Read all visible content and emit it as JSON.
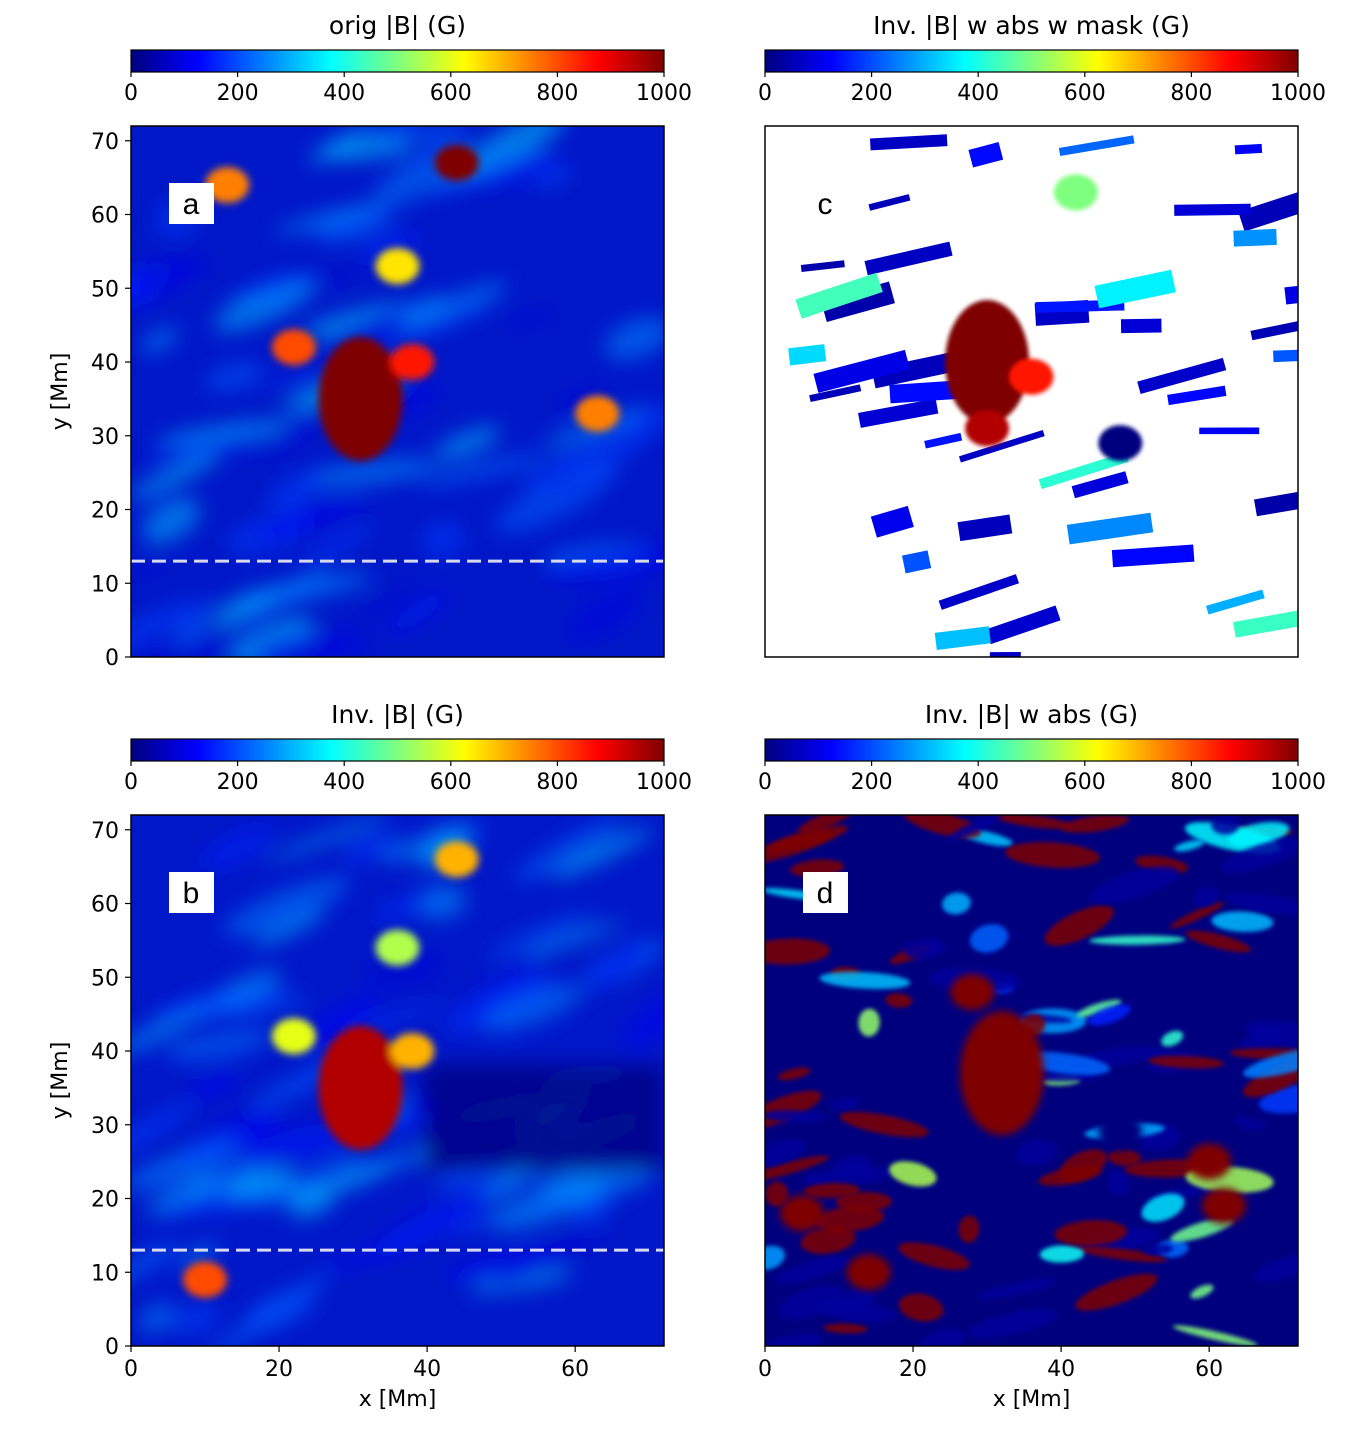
{
  "figure": {
    "colorscale": [
      "#00007f",
      "#0000ff",
      "#007fff",
      "#00ffff",
      "#7fff7f",
      "#ffff00",
      "#ff7f00",
      "#ff0000",
      "#7f0000"
    ],
    "x_axis_label": "x [Mm]",
    "y_axis_label": "y [Mm]"
  },
  "chart_data": [
    {
      "type": "heatmap",
      "panel_label": "a",
      "title": "orig |B| (G)",
      "colorbar": {
        "min": 0,
        "max": 1000,
        "ticks": [
          0,
          200,
          400,
          600,
          800,
          1000
        ],
        "cmap": "jet"
      },
      "xlim": [
        0,
        72
      ],
      "ylim": [
        0,
        72
      ],
      "yticks": [
        0,
        10,
        20,
        30,
        40,
        50,
        60,
        70
      ],
      "ylabel": "y [Mm]",
      "xlabel": "",
      "dashed_line_y": 13,
      "features": [
        {
          "x": 31,
          "y": 35,
          "value": 1000
        },
        {
          "x": 44,
          "y": 67,
          "value": 1000
        },
        {
          "x": 38,
          "y": 40,
          "value": 850
        },
        {
          "x": 22,
          "y": 42,
          "value": 800
        },
        {
          "x": 36,
          "y": 53,
          "value": 650
        },
        {
          "x": 63,
          "y": 33,
          "value": 750
        },
        {
          "x": 13,
          "y": 64,
          "value": 750
        }
      ]
    },
    {
      "type": "heatmap",
      "panel_label": "b",
      "title": "Inv. |B| (G)",
      "colorbar": {
        "min": 0,
        "max": 1000,
        "ticks": [
          0,
          200,
          400,
          600,
          800,
          1000
        ],
        "cmap": "jet"
      },
      "xlim": [
        0,
        72
      ],
      "ylim": [
        0,
        72
      ],
      "xticks": [
        0,
        20,
        40,
        60
      ],
      "yticks": [
        0,
        10,
        20,
        30,
        40,
        50,
        60,
        70
      ],
      "xlabel": "x [Mm]",
      "ylabel": "y [Mm]",
      "dashed_line_y": 13,
      "features": [
        {
          "x": 31,
          "y": 35,
          "value": 950
        },
        {
          "x": 38,
          "y": 40,
          "value": 700
        },
        {
          "x": 44,
          "y": 66,
          "value": 700
        },
        {
          "x": 22,
          "y": 42,
          "value": 600
        },
        {
          "x": 36,
          "y": 54,
          "value": 550
        },
        {
          "x": 10,
          "y": 9,
          "value": 800
        }
      ]
    },
    {
      "type": "heatmap",
      "panel_label": "c",
      "title": "Inv. |B| w abs w mask (G)",
      "colorbar": {
        "min": 0,
        "max": 1000,
        "ticks": [
          0,
          200,
          400,
          600,
          800,
          1000
        ],
        "cmap": "jet"
      },
      "xlim": [
        0,
        72
      ],
      "ylim": [
        0,
        72
      ],
      "xlabel": "",
      "ylabel": "",
      "features": [
        {
          "x": 30,
          "y": 40,
          "value": 1000
        },
        {
          "x": 30,
          "y": 31,
          "value": 950
        },
        {
          "x": 36,
          "y": 38,
          "value": 850
        },
        {
          "x": 48,
          "y": 29,
          "value": 0
        },
        {
          "x": 42,
          "y": 63,
          "value": 500
        }
      ]
    },
    {
      "type": "heatmap",
      "panel_label": "d",
      "title": "Inv. |B| w abs (G)",
      "colorbar": {
        "min": 0,
        "max": 1000,
        "ticks": [
          0,
          200,
          400,
          600,
          800,
          1000
        ],
        "cmap": "jet"
      },
      "xlim": [
        0,
        72
      ],
      "ylim": [
        0,
        72
      ],
      "xticks": [
        0,
        20,
        40,
        60
      ],
      "xlabel": "x [Mm]",
      "ylabel": "",
      "features": [
        {
          "x": 32,
          "y": 37,
          "value": 1000
        },
        {
          "x": 60,
          "y": 25,
          "value": 1000
        },
        {
          "x": 62,
          "y": 19,
          "value": 1000
        },
        {
          "x": 14,
          "y": 10,
          "value": 1000
        },
        {
          "x": 5,
          "y": 18,
          "value": 1000
        },
        {
          "x": 28,
          "y": 48,
          "value": 1000
        },
        {
          "x": 48,
          "y": 29,
          "value": 0
        }
      ]
    }
  ]
}
